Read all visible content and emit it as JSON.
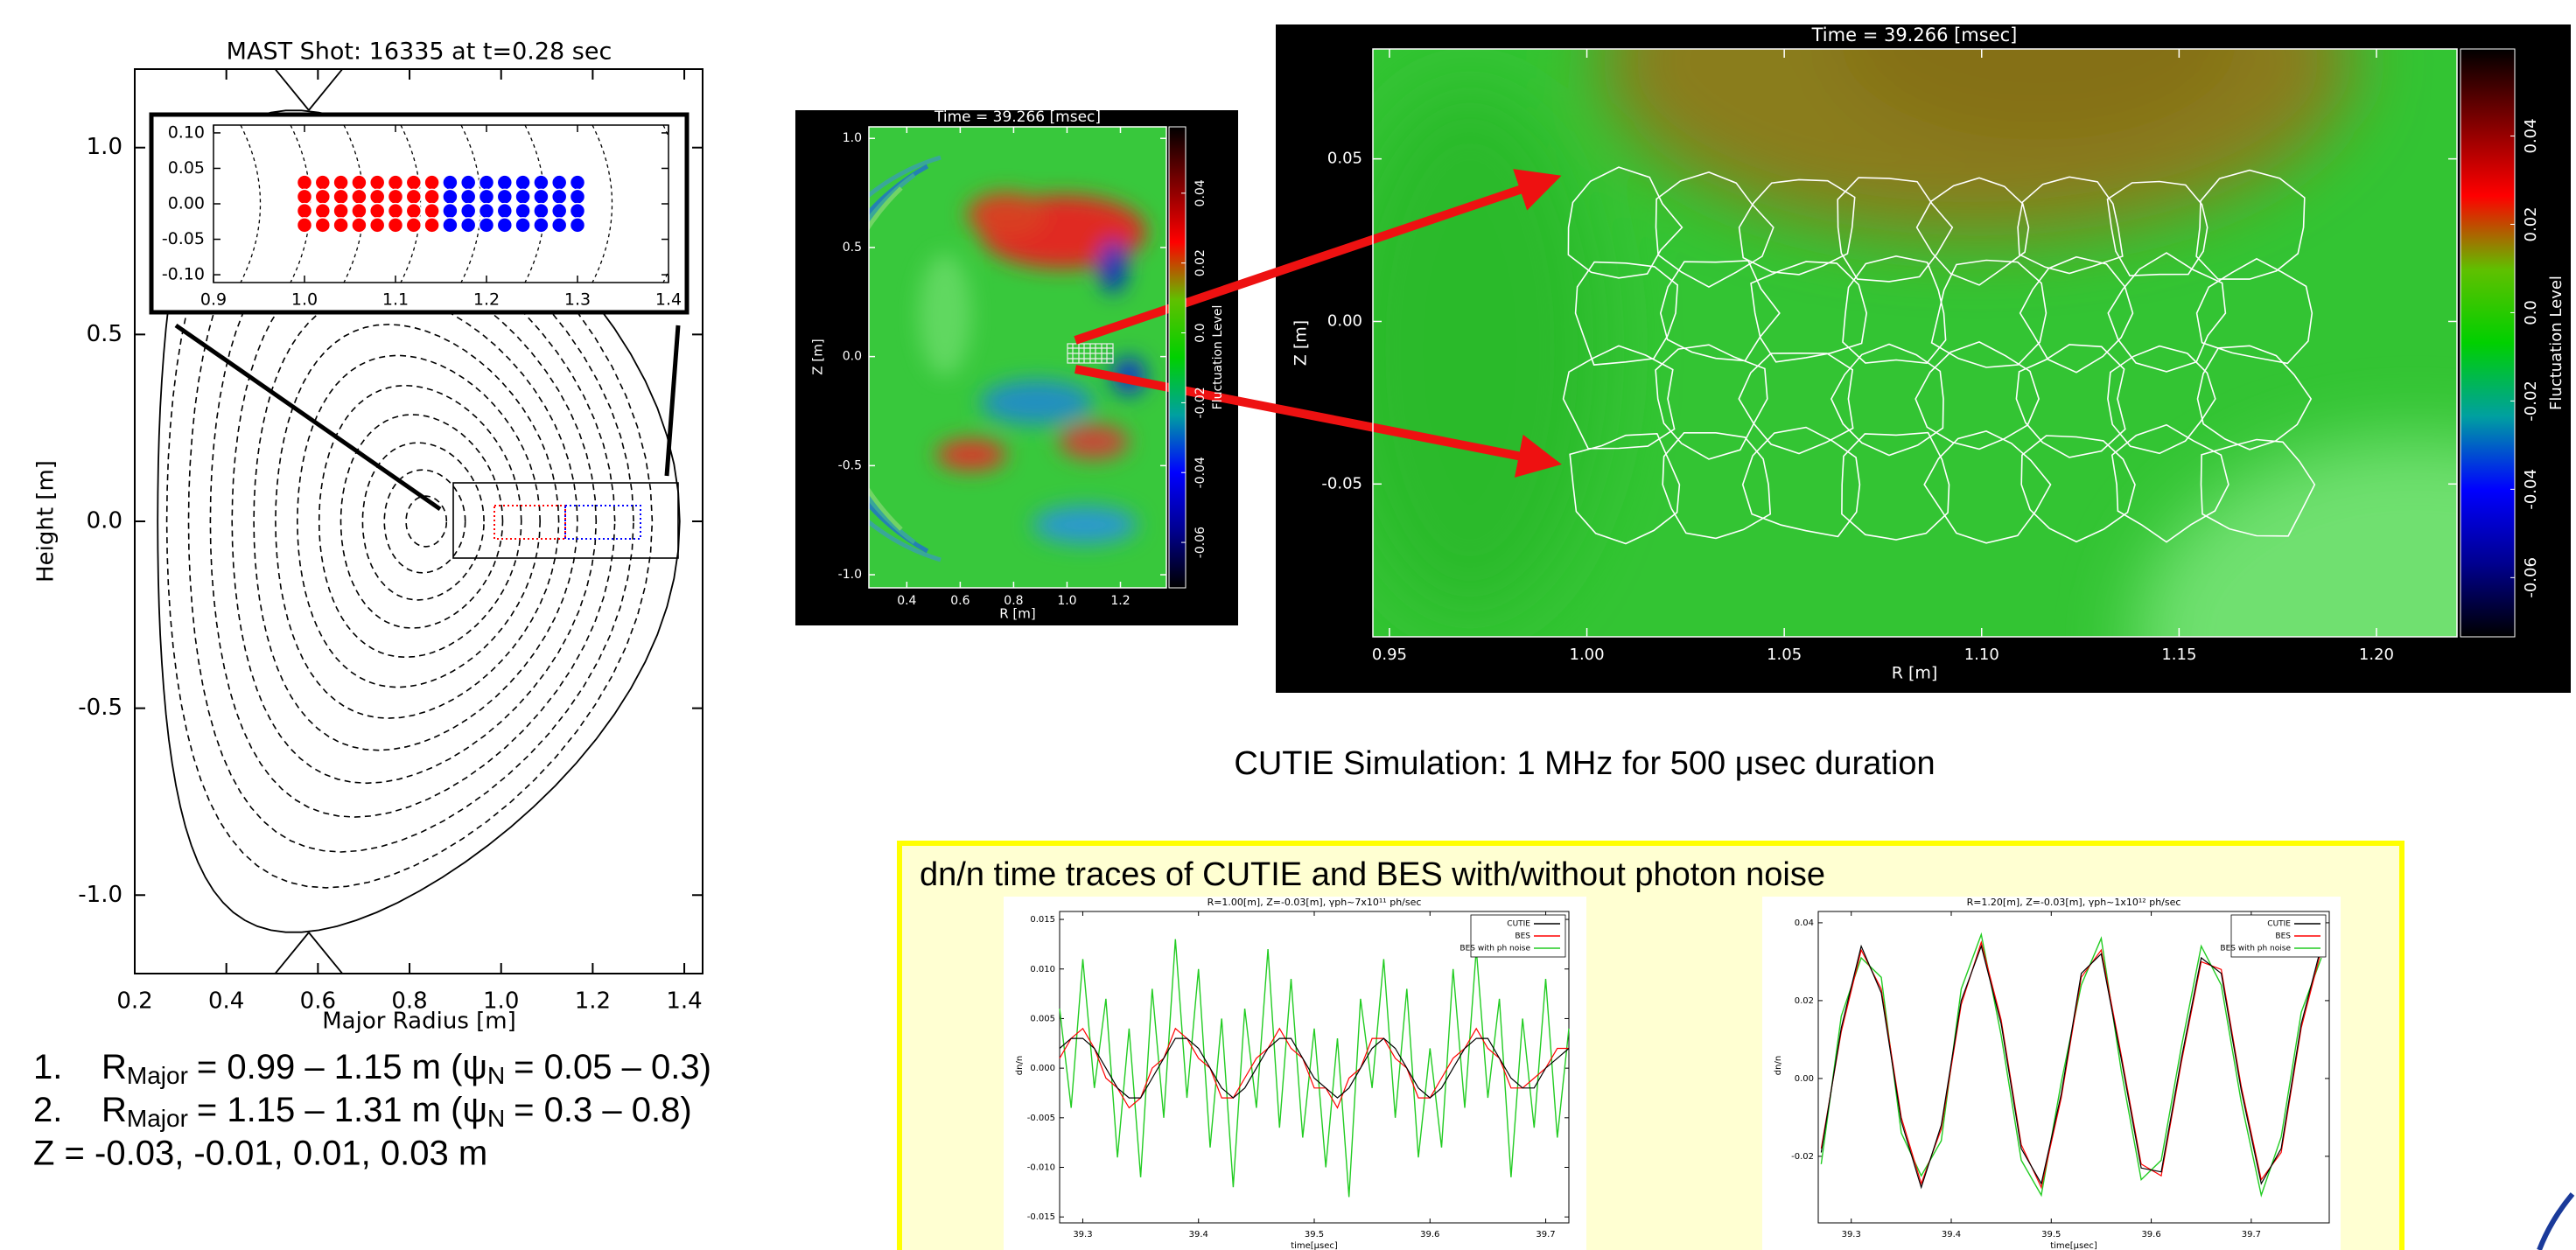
{
  "chart_data": [
    {
      "type": "equilibrium",
      "title": "MAST Shot: 16335 at t=0.28 sec",
      "xlabel": "Major Radius [m]",
      "ylabel": "Height [m]",
      "xlim": [
        0.2,
        1.44
      ],
      "ylim": [
        -1.21,
        1.21
      ],
      "xticks": [
        0.2,
        0.4,
        0.6,
        0.8,
        {
          "value": 1.0,
          "label": "1.0"
        },
        1.2,
        1.4
      ],
      "yticks": [
        {
          "value": 1.0,
          "label": "1.0"
        },
        0.5,
        {
          "value": 0,
          "label": "0.0"
        },
        -0.5,
        {
          "value": -1.0,
          "label": "-1.0"
        }
      ],
      "inset": {
        "type": "scatter",
        "xlim": [
          0.9,
          1.4
        ],
        "ylim": [
          -0.111,
          0.111
        ],
        "xticks": [
          0.9,
          {
            "value": 1.0,
            "label": "1.0"
          },
          1.1,
          1.2,
          1.3,
          1.4
        ],
        "yticks": [
          {
            "value": 0.1,
            "label": "0.10"
          },
          0.05,
          {
            "value": 0,
            "label": "0.00"
          },
          -0.05,
          {
            "value": -0.1,
            "label": "-0.10"
          }
        ],
        "series": [
          {
            "color": "#ff0000",
            "x": [
              1.0,
              1.02,
              1.04,
              1.06,
              1.08,
              1.1,
              1.12,
              1.14,
              1.0,
              1.02,
              1.04,
              1.06,
              1.08,
              1.1,
              1.12,
              1.14,
              1.0,
              1.02,
              1.04,
              1.06,
              1.08,
              1.1,
              1.12,
              1.14,
              1.0,
              1.02,
              1.04,
              1.06,
              1.08,
              1.1,
              1.12,
              1.14
            ],
            "y": [
              0.03,
              0.03,
              0.03,
              0.03,
              0.03,
              0.03,
              0.03,
              0.03,
              0.01,
              0.01,
              0.01,
              0.01,
              0.01,
              0.01,
              0.01,
              0.01,
              -0.01,
              -0.01,
              -0.01,
              -0.01,
              -0.01,
              -0.01,
              -0.01,
              -0.01,
              -0.03,
              -0.03,
              -0.03,
              -0.03,
              -0.03,
              -0.03,
              -0.03,
              -0.03
            ]
          },
          {
            "color": "#0000ff",
            "x": [
              1.16,
              1.18,
              1.2,
              1.22,
              1.24,
              1.26,
              1.28,
              1.3,
              1.16,
              1.18,
              1.2,
              1.22,
              1.24,
              1.26,
              1.28,
              1.3,
              1.16,
              1.18,
              1.2,
              1.22,
              1.24,
              1.26,
              1.28,
              1.3,
              1.16,
              1.18,
              1.2,
              1.22,
              1.24,
              1.26,
              1.28,
              1.3
            ],
            "y": [
              0.03,
              0.03,
              0.03,
              0.03,
              0.03,
              0.03,
              0.03,
              0.03,
              0.01,
              0.01,
              0.01,
              0.01,
              0.01,
              0.01,
              0.01,
              0.01,
              -0.01,
              -0.01,
              -0.01,
              -0.01,
              -0.01,
              -0.01,
              -0.01,
              -0.01,
              -0.03,
              -0.03,
              -0.03,
              -0.03,
              -0.03,
              -0.03,
              -0.03,
              -0.03
            ]
          }
        ]
      }
    },
    {
      "type": "map",
      "title": "Time =  39.266 [msec]",
      "xlabel": "R [m]",
      "ylabel": "Z [m]",
      "xlim": [
        0.258,
        1.372
      ],
      "ylim": [
        -1.06,
        1.053
      ],
      "xticks": [
        0.4,
        0.6,
        0.8,
        {
          "value": 1.0,
          "label": "1.0"
        },
        1.2
      ],
      "yticks": [
        {
          "value": 1.0,
          "label": "1.0"
        },
        0.5,
        {
          "value": 0,
          "label": "0.0"
        },
        -0.5,
        {
          "value": -1.0,
          "label": "-1.0"
        }
      ],
      "colorbar": {
        "label": "Fluctuation Level",
        "lim": [
          -0.073,
          0.059
        ],
        "ticks": [
          0.04,
          0.02,
          {
            "value": 0,
            "label": "0.0"
          },
          -0.02,
          -0.04,
          -0.06
        ],
        "colors": [
          "#000000",
          "#000090",
          "#0000ff",
          "#00a0a0",
          "#00d000",
          "#60c000",
          "#ff0000",
          "#800000",
          "#000000"
        ]
      }
    },
    {
      "type": "map",
      "title": "Time =  39.266 [msec]",
      "xlabel": "R [m]",
      "ylabel": "Z [m]",
      "xlim": [
        0.9458,
        1.2204
      ],
      "ylim": [
        -0.097,
        0.0838
      ],
      "xticks": [
        0.95,
        {
          "value": 1.0,
          "label": "1.00"
        },
        1.05,
        {
          "value": 1.1,
          "label": "1.10"
        },
        1.15,
        {
          "value": 1.2,
          "label": "1.20"
        }
      ],
      "yticks": [
        0.05,
        {
          "value": 0,
          "label": "0.00"
        },
        -0.05
      ],
      "colorbar": {
        "label": "Fluctuation Level",
        "lim": [
          -0.0734,
          0.0597
        ],
        "ticks": [
          0.04,
          0.02,
          {
            "value": 0,
            "label": "0.0"
          },
          -0.02,
          -0.04,
          -0.06
        ],
        "colors": [
          "#000000",
          "#000090",
          "#0000ff",
          "#00a0a0",
          "#00d000",
          "#60c000",
          "#ff0000",
          "#800000",
          "#000000"
        ]
      }
    },
    {
      "type": "line",
      "title": "R=1.00[m], Z=-0.03[m], γph~7x10¹¹ ph/sec",
      "xlabel": "time[μsec]",
      "ylabel": "dn/n",
      "xlim": [
        39.28,
        39.72
      ],
      "ylim": [
        -0.0156,
        0.0158
      ],
      "xticks": [
        39.3,
        39.4,
        39.5,
        39.6,
        39.7
      ],
      "yticks": [
        0.015,
        {
          "value": 0.01,
          "label": "0.010"
        },
        0.005,
        {
          "value": 0,
          "label": "0.000"
        },
        -0.005,
        {
          "value": -0.01,
          "label": "-0.010"
        },
        -0.015
      ],
      "legend": "upper right",
      "x": [
        39.28,
        39.29,
        39.3,
        39.31,
        39.32,
        39.33,
        39.34,
        39.35,
        39.36,
        39.37,
        39.38,
        39.39,
        39.4,
        39.41,
        39.42,
        39.43,
        39.44,
        39.45,
        39.46,
        39.47,
        39.48,
        39.49,
        39.5,
        39.51,
        39.52,
        39.53,
        39.54,
        39.55,
        39.56,
        39.57,
        39.58,
        39.59,
        39.6,
        39.61,
        39.62,
        39.63,
        39.64,
        39.65,
        39.66,
        39.67,
        39.68,
        39.69,
        39.7,
        39.71,
        39.72
      ],
      "series": [
        {
          "name": "CUTIE",
          "color": "#000000",
          "values": [
            0.002,
            0.003,
            0.003,
            0.002,
            0.0,
            -0.002,
            -0.003,
            -0.003,
            -0.001,
            0.001,
            0.003,
            0.003,
            0.002,
            0.0,
            -0.002,
            -0.003,
            -0.002,
            0.0,
            0.002,
            0.003,
            0.003,
            0.001,
            -0.001,
            -0.002,
            -0.003,
            -0.002,
            0.0,
            0.002,
            0.003,
            0.002,
            0.0,
            -0.002,
            -0.003,
            -0.002,
            0.0,
            0.002,
            0.003,
            0.003,
            0.001,
            -0.001,
            -0.002,
            -0.002,
            0.0,
            0.001,
            0.002
          ]
        },
        {
          "name": "BES",
          "color": "#ff0000",
          "values": [
            0.001,
            0.003,
            0.004,
            0.002,
            -0.001,
            -0.002,
            -0.004,
            -0.003,
            0.0,
            0.001,
            0.004,
            0.003,
            0.001,
            0.0,
            -0.003,
            -0.003,
            -0.001,
            0.001,
            0.002,
            0.004,
            0.002,
            0.001,
            -0.002,
            -0.002,
            -0.004,
            -0.001,
            0.0,
            0.003,
            0.003,
            0.001,
            0.0,
            -0.003,
            -0.003,
            -0.001,
            0.001,
            0.002,
            0.004,
            0.002,
            0.001,
            -0.002,
            -0.002,
            -0.001,
            0.0,
            0.002,
            0.002
          ]
        },
        {
          "name": "BES with ph noise",
          "color": "#22cc22",
          "values": [
            0.006,
            -0.004,
            0.011,
            -0.002,
            0.007,
            -0.009,
            0.004,
            -0.011,
            0.008,
            -0.005,
            0.013,
            -0.003,
            0.01,
            -0.008,
            0.005,
            -0.012,
            0.006,
            -0.004,
            0.012,
            -0.006,
            0.009,
            -0.007,
            0.004,
            -0.01,
            0.003,
            -0.013,
            0.007,
            -0.002,
            0.011,
            -0.005,
            0.008,
            -0.009,
            0.002,
            -0.008,
            0.01,
            -0.004,
            0.012,
            -0.003,
            0.007,
            -0.011,
            0.005,
            -0.006,
            0.009,
            -0.007,
            0.004
          ]
        }
      ]
    },
    {
      "type": "line",
      "title": "R=1.20[m], Z=-0.03[m], γph~1x10¹² ph/sec",
      "xlabel": "time[μsec]",
      "ylabel": "dn/n",
      "xlim": [
        39.267,
        39.778
      ],
      "ylim": [
        -0.0371,
        0.0429
      ],
      "xticks": [
        39.3,
        39.4,
        39.5,
        39.6,
        39.7
      ],
      "yticks": [
        0.04,
        0.02,
        {
          "value": 0,
          "label": "0.00"
        },
        -0.02
      ],
      "legend": "upper right",
      "x": [
        39.27,
        39.29,
        39.31,
        39.33,
        39.35,
        39.37,
        39.39,
        39.41,
        39.43,
        39.45,
        39.47,
        39.49,
        39.51,
        39.53,
        39.55,
        39.57,
        39.59,
        39.61,
        39.63,
        39.65,
        39.67,
        39.69,
        39.71,
        39.73,
        39.75,
        39.77
      ],
      "series": [
        {
          "name": "CUTIE",
          "color": "#000000",
          "values": [
            -0.019,
            0.013,
            0.034,
            0.022,
            -0.011,
            -0.028,
            -0.012,
            0.02,
            0.034,
            0.014,
            -0.018,
            -0.027,
            -0.004,
            0.027,
            0.032,
            0.005,
            -0.023,
            -0.024,
            0.005,
            0.031,
            0.027,
            -0.003,
            -0.027,
            -0.018,
            0.014,
            0.034
          ]
        },
        {
          "name": "BES",
          "color": "#ff0000",
          "values": [
            -0.018,
            0.012,
            0.033,
            0.023,
            -0.01,
            -0.027,
            -0.013,
            0.019,
            0.035,
            0.015,
            -0.017,
            -0.028,
            -0.005,
            0.026,
            0.033,
            0.006,
            -0.022,
            -0.025,
            0.004,
            0.03,
            0.028,
            -0.002,
            -0.026,
            -0.019,
            0.013,
            0.033
          ]
        },
        {
          "name": "BES with ph noise",
          "color": "#22cc22",
          "values": [
            -0.022,
            0.016,
            0.031,
            0.026,
            -0.014,
            -0.025,
            -0.016,
            0.023,
            0.037,
            0.011,
            -0.021,
            -0.03,
            -0.001,
            0.024,
            0.036,
            0.002,
            -0.026,
            -0.021,
            0.008,
            0.034,
            0.024,
            -0.006,
            -0.03,
            -0.015,
            0.017,
            0.031
          ]
        }
      ]
    }
  ],
  "notes": [
    {
      "number": "1.",
      "parts": [
        "R",
        "Major",
        "= 0.99 – 1.15 m (ψ",
        "N",
        "= 0.05 – 0.3)"
      ]
    },
    {
      "number": "2.",
      "parts": [
        "R",
        "Major",
        "= 1.15 – 1.31 m (ψ",
        "N",
        "= 0.3 – 0.8)"
      ]
    },
    {
      "text": "Z = -0.03, -0.01, 0.01, 0.03 m"
    }
  ],
  "caption": "CUTIE Simulation: 1 MHz for 500 μsec duration",
  "traces_title": "dn/n time traces of CUTIE and BES with/without photon noise"
}
